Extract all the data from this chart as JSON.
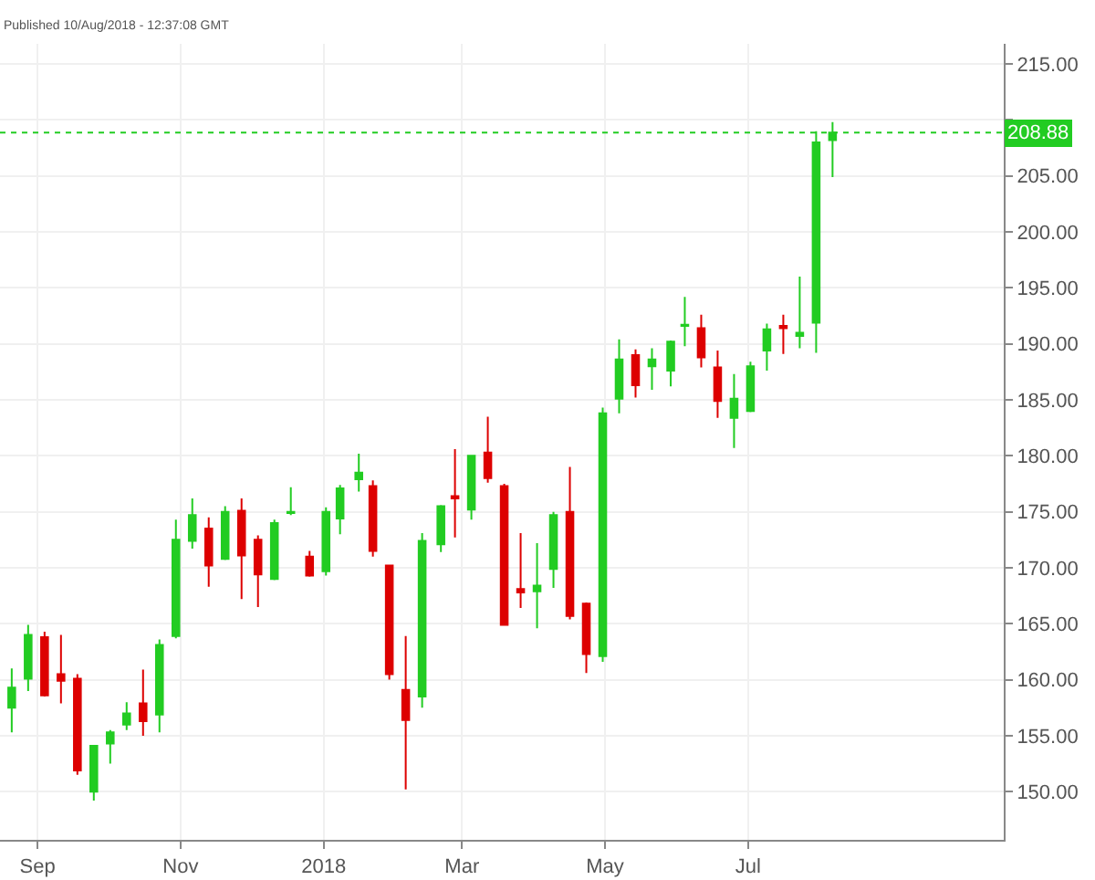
{
  "chart_data": {
    "type": "candlestick",
    "annotations": [
      "Published 10/Aug/2018 - 12:37:08 GMT"
    ],
    "x": [
      "2017-08-21",
      "2017-08-28",
      "2017-09-04",
      "2017-09-11",
      "2017-09-18",
      "2017-09-25",
      "2017-10-02",
      "2017-10-09",
      "2017-10-16",
      "2017-10-23",
      "2017-10-30",
      "2017-11-06",
      "2017-11-13",
      "2017-11-20",
      "2017-11-27",
      "2017-12-04",
      "2017-12-11",
      "2017-12-18",
      "2017-12-26",
      "2018-01-02",
      "2018-01-08",
      "2018-01-16",
      "2018-01-22",
      "2018-01-29",
      "2018-02-05",
      "2018-02-12",
      "2018-02-20",
      "2018-02-26",
      "2018-03-05",
      "2018-03-12",
      "2018-03-19",
      "2018-03-26",
      "2018-04-02",
      "2018-04-09",
      "2018-04-16",
      "2018-04-23",
      "2018-04-30",
      "2018-05-07",
      "2018-05-14",
      "2018-05-21",
      "2018-05-29",
      "2018-06-04",
      "2018-06-11",
      "2018-06-18",
      "2018-06-25",
      "2018-07-02",
      "2018-07-09",
      "2018-07-16",
      "2018-07-23",
      "2018-07-30",
      "2018-08-06"
    ],
    "ohlc": [
      [
        157.5,
        161.0,
        155.3,
        159.3
      ],
      [
        160.1,
        164.9,
        159.0,
        164.0
      ],
      [
        163.8,
        164.3,
        158.5,
        158.6
      ],
      [
        160.5,
        164.0,
        157.9,
        159.9
      ],
      [
        160.1,
        160.5,
        151.5,
        151.9
      ],
      [
        150.0,
        154.1,
        149.2,
        154.1
      ],
      [
        154.3,
        155.5,
        152.5,
        155.3
      ],
      [
        156.0,
        158.0,
        155.5,
        157.0
      ],
      [
        157.9,
        160.9,
        155.0,
        156.3
      ],
      [
        156.9,
        163.6,
        155.3,
        163.1
      ],
      [
        163.9,
        174.3,
        163.7,
        172.5
      ],
      [
        172.4,
        176.2,
        171.7,
        174.7
      ],
      [
        173.5,
        174.5,
        168.3,
        170.2
      ],
      [
        170.8,
        175.5,
        170.7,
        175.0
      ],
      [
        175.1,
        176.2,
        167.2,
        171.1
      ],
      [
        172.5,
        172.9,
        166.5,
        169.4
      ],
      [
        169.0,
        174.3,
        168.9,
        174.0
      ],
      [
        174.9,
        177.2,
        174.7,
        175.0
      ],
      [
        171.0,
        171.5,
        169.2,
        169.3
      ],
      [
        169.7,
        175.4,
        169.3,
        175.0
      ],
      [
        174.4,
        177.4,
        173.0,
        177.1
      ],
      [
        177.9,
        180.2,
        176.8,
        178.5
      ],
      [
        177.3,
        177.8,
        171.0,
        171.5
      ],
      [
        170.2,
        170.2,
        160.0,
        160.5
      ],
      [
        159.1,
        163.9,
        150.2,
        156.4
      ],
      [
        158.5,
        173.1,
        157.5,
        172.4
      ],
      [
        172.1,
        175.6,
        171.4,
        175.5
      ],
      [
        176.4,
        180.6,
        172.7,
        176.2
      ],
      [
        175.2,
        180.0,
        174.3,
        180.0
      ],
      [
        180.3,
        183.5,
        177.6,
        178.0
      ],
      [
        177.3,
        177.5,
        164.9,
        164.9
      ],
      [
        168.1,
        173.1,
        166.4,
        167.8
      ],
      [
        167.9,
        172.2,
        164.6,
        168.4
      ],
      [
        169.9,
        175.0,
        168.2,
        174.7
      ],
      [
        175.0,
        179.0,
        165.4,
        165.7
      ],
      [
        166.8,
        166.9,
        160.6,
        162.3
      ],
      [
        162.1,
        184.3,
        161.6,
        183.8
      ],
      [
        185.1,
        190.4,
        183.8,
        188.6
      ],
      [
        189.0,
        189.5,
        185.2,
        186.3
      ],
      [
        188.0,
        189.6,
        185.9,
        188.6
      ],
      [
        187.6,
        190.3,
        186.2,
        190.2
      ],
      [
        191.6,
        194.2,
        189.8,
        191.7
      ],
      [
        191.4,
        192.6,
        187.9,
        188.8
      ],
      [
        187.9,
        189.4,
        183.4,
        184.9
      ],
      [
        183.4,
        187.3,
        180.7,
        185.1
      ],
      [
        184.0,
        188.4,
        183.9,
        188.0
      ],
      [
        189.4,
        191.8,
        187.6,
        191.3
      ],
      [
        191.6,
        192.6,
        189.1,
        191.4
      ],
      [
        190.7,
        196.0,
        189.6,
        191.0
      ],
      [
        191.9,
        209.0,
        189.2,
        208.0
      ],
      [
        208.2,
        209.8,
        204.9,
        208.88
      ]
    ],
    "colors": [
      "#22cc22",
      "#22cc22",
      "#dd0000",
      "#dd0000",
      "#dd0000",
      "#22cc22",
      "#22cc22",
      "#22cc22",
      "#dd0000",
      "#22cc22",
      "#22cc22",
      "#22cc22",
      "#dd0000",
      "#22cc22",
      "#dd0000",
      "#dd0000",
      "#22cc22",
      "#22cc22",
      "#dd0000",
      "#22cc22",
      "#22cc22",
      "#22cc22",
      "#dd0000",
      "#dd0000",
      "#dd0000",
      "#22cc22",
      "#22cc22",
      "#dd0000",
      "#22cc22",
      "#dd0000",
      "#dd0000",
      "#dd0000",
      "#22cc22",
      "#22cc22",
      "#dd0000",
      "#dd0000",
      "#22cc22",
      "#22cc22",
      "#dd0000",
      "#22cc22",
      "#22cc22",
      "#22cc22",
      "#dd0000",
      "#dd0000",
      "#22cc22",
      "#22cc22",
      "#22cc22",
      "#dd0000",
      "#22cc22",
      "#22cc22",
      "#22cc22"
    ],
    "xlim": [
      "2017-08-16",
      "2018-10-18"
    ],
    "xticks": [
      {
        "value": "2017-09-01",
        "label": "Sep"
      },
      {
        "value": "2017-11-01",
        "label": "Nov"
      },
      {
        "value": "2018-01-01",
        "label": "2018"
      },
      {
        "value": "2018-03-01",
        "label": "Mar"
      },
      {
        "value": "2018-05-01",
        "label": "May"
      },
      {
        "value": "2018-07-01",
        "label": "Jul"
      }
    ],
    "ylim": [
      145.7,
      216.8
    ],
    "yticks": [
      {
        "value": 150,
        "label": "150.00"
      },
      {
        "value": 155,
        "label": "155.00"
      },
      {
        "value": 160,
        "label": "160.00"
      },
      {
        "value": 165,
        "label": "165.00"
      },
      {
        "value": 170,
        "label": "170.00"
      },
      {
        "value": 175,
        "label": "175.00"
      },
      {
        "value": 180,
        "label": "180.00"
      },
      {
        "value": 185,
        "label": "185.00"
      },
      {
        "value": 190,
        "label": "190.00"
      },
      {
        "value": 195,
        "label": "195.00"
      },
      {
        "value": 200,
        "label": "200.00"
      },
      {
        "value": 205,
        "label": "205.00"
      },
      {
        "value": 210,
        "label": null
      },
      {
        "value": 215,
        "label": "215.00"
      }
    ],
    "ref_lines": [
      {
        "axis": "y",
        "value": 208.88,
        "label": "208.88",
        "color": "#22cc22",
        "line_style": "dotted"
      }
    ],
    "grid": true
  }
}
